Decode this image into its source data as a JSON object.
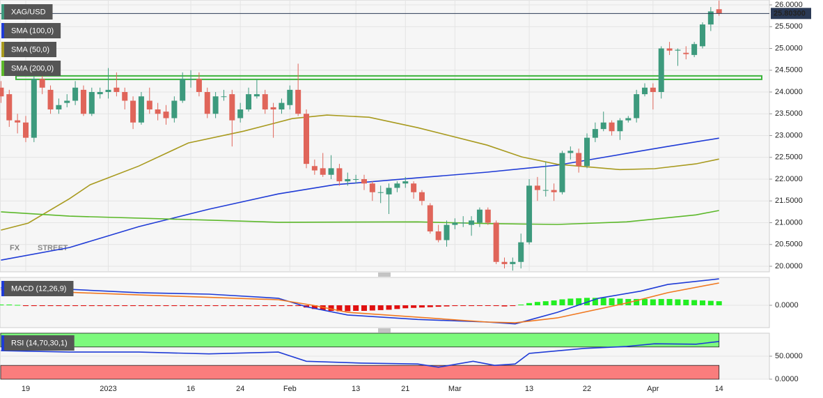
{
  "chart_data": [
    {
      "type": "candlestick",
      "name": "XAG/USD",
      "up_color": "#3d9a7d",
      "down_color": "#e0655a",
      "categories": [
        null,
        null,
        null,
        "19",
        null,
        null,
        null,
        null,
        null,
        null,
        null,
        null,
        null,
        "2023",
        null,
        null,
        null,
        null,
        null,
        null,
        null,
        null,
        null,
        "16",
        null,
        null,
        null,
        null,
        null,
        "24",
        null,
        null,
        null,
        null,
        null,
        "Feb",
        null,
        null,
        null,
        null,
        null,
        null,
        null,
        "13",
        null,
        null,
        null,
        null,
        null,
        "21",
        null,
        null,
        null,
        null,
        null,
        "Mar",
        null,
        null,
        null,
        null,
        null,
        null,
        null,
        null,
        "13",
        null,
        null,
        null,
        null,
        null,
        null,
        "22",
        null,
        null,
        null,
        null,
        null,
        null,
        null,
        "Apr",
        null,
        null,
        null,
        null,
        null,
        null,
        null,
        "14"
      ],
      "open": [
        24.1,
        23.95,
        23.35,
        23.3,
        22.95,
        24.3,
        24.05,
        23.6,
        23.75,
        23.8,
        24.05,
        23.5,
        23.95,
        24.0,
        24.1,
        24.0,
        23.8,
        23.3,
        23.8,
        23.6,
        23.55,
        23.4,
        23.8,
        24.3,
        24.3,
        24.0,
        23.5,
        23.9,
        23.95,
        23.4,
        23.6,
        23.9,
        23.95,
        23.65,
        23.6,
        23.7,
        24.05,
        23.5,
        22.3,
        22.25,
        22.1,
        22.25,
        21.95,
        22.0,
        22.0,
        21.9,
        21.7,
        21.65,
        21.8,
        21.9,
        21.9,
        21.7,
        21.4,
        20.8,
        20.6,
        20.95,
        21.0,
        20.95,
        21.0,
        21.3,
        21.0,
        20.1,
        20.05,
        20.1,
        20.55,
        21.85,
        21.75,
        21.75,
        21.7,
        22.6,
        22.6,
        22.3,
        22.95,
        23.15,
        23.3,
        23.1,
        23.35,
        23.4,
        23.95,
        24.1,
        24.0,
        25.0,
        24.95,
        24.9,
        24.85,
        25.05,
        25.55,
        25.9
      ],
      "high": [
        24.25,
        24.05,
        23.5,
        23.45,
        24.4,
        24.45,
        24.15,
        23.85,
        23.95,
        24.25,
        24.15,
        24.1,
        24.1,
        24.55,
        24.45,
        24.1,
        23.9,
        24.0,
        24.1,
        23.75,
        23.7,
        23.9,
        24.45,
        24.5,
        24.45,
        24.1,
        24.0,
        24.05,
        24.05,
        23.75,
        24.1,
        24.3,
        24.05,
        23.75,
        23.85,
        24.15,
        24.65,
        23.6,
        22.45,
        22.6,
        22.55,
        22.35,
        22.15,
        22.1,
        22.1,
        21.95,
        21.85,
        21.9,
        21.95,
        22.05,
        21.95,
        21.75,
        21.45,
        20.95,
        21.05,
        21.1,
        21.15,
        21.15,
        21.35,
        21.35,
        21.05,
        20.2,
        20.2,
        20.75,
        22.0,
        22.05,
        22.4,
        21.9,
        22.65,
        22.75,
        22.7,
        23.05,
        23.3,
        23.55,
        23.35,
        23.4,
        23.45,
        24.05,
        24.2,
        24.2,
        25.05,
        25.15,
        25.0,
        25.05,
        25.15,
        25.6,
        25.95,
        26.1
      ],
      "low": [
        23.75,
        23.2,
        23.05,
        22.85,
        22.85,
        23.95,
        23.5,
        23.5,
        23.65,
        23.7,
        23.45,
        23.45,
        23.85,
        23.85,
        23.9,
        23.6,
        23.15,
        23.25,
        23.5,
        23.35,
        23.25,
        23.3,
        23.75,
        24.1,
        23.9,
        23.4,
        23.4,
        23.8,
        22.75,
        23.3,
        23.55,
        23.85,
        23.5,
        22.95,
        23.5,
        23.6,
        23.45,
        22.25,
        22.1,
        22.05,
        22.0,
        21.85,
        21.85,
        21.9,
        21.75,
        21.5,
        21.45,
        21.2,
        21.7,
        21.8,
        21.55,
        21.4,
        20.75,
        20.55,
        20.45,
        20.85,
        20.9,
        20.7,
        20.9,
        20.95,
        20.05,
        19.95,
        19.9,
        19.95,
        20.5,
        21.5,
        21.6,
        21.5,
        21.65,
        22.45,
        22.15,
        22.25,
        22.85,
        23.1,
        23.0,
        22.9,
        23.3,
        23.3,
        23.9,
        23.6,
        23.85,
        24.85,
        24.6,
        24.75,
        24.8,
        25.0,
        25.4,
        25.75
      ],
      "close": [
        23.9,
        23.35,
        23.3,
        22.95,
        24.3,
        24.1,
        23.6,
        23.7,
        23.8,
        24.1,
        23.5,
        24.0,
        24.0,
        24.05,
        24.0,
        23.8,
        23.3,
        23.9,
        23.6,
        23.5,
        23.4,
        23.8,
        24.3,
        24.3,
        24.0,
        23.5,
        23.9,
        23.9,
        23.35,
        23.6,
        23.95,
        23.95,
        23.6,
        23.6,
        23.75,
        24.05,
        23.5,
        22.35,
        22.2,
        22.1,
        22.25,
        21.95,
        22.0,
        22.0,
        21.9,
        21.7,
        21.7,
        21.8,
        21.9,
        21.95,
        21.7,
        21.5,
        20.8,
        20.6,
        20.95,
        21.0,
        21.0,
        21.05,
        21.3,
        21.0,
        20.1,
        20.05,
        20.1,
        20.55,
        21.85,
        21.75,
        21.75,
        21.7,
        22.6,
        22.65,
        22.3,
        22.95,
        23.15,
        23.3,
        23.1,
        23.35,
        23.4,
        23.95,
        24.1,
        24.0,
        25.0,
        24.95,
        24.97,
        24.87,
        25.1,
        25.55,
        25.85,
        25.8
      ],
      "series": [
        {
          "name": "SMA (100,0)",
          "color": "#1f3bd6",
          "x": [
            0,
            8.3,
            16.7,
            25.2,
            33.6,
            40.4,
            50.5,
            58.9,
            67.4,
            75.8,
            80.8,
            87
          ],
          "values": [
            20.14,
            20.43,
            20.91,
            21.31,
            21.66,
            21.87,
            22.03,
            22.16,
            22.32,
            22.59,
            22.75,
            22.94
          ]
        },
        {
          "name": "SMA (50,0)",
          "color": "#a89a1e",
          "x": [
            0,
            3.3,
            8.3,
            10.8,
            16.7,
            22.7,
            29.4,
            35.3,
            39.5,
            44.6,
            50.5,
            58.9,
            63.1,
            67.4,
            75,
            79.2,
            84.2,
            87
          ],
          "values": [
            20.83,
            20.99,
            21.55,
            21.87,
            22.3,
            22.83,
            23.1,
            23.39,
            23.47,
            23.42,
            23.18,
            22.78,
            22.51,
            22.34,
            22.22,
            22.24,
            22.35,
            22.46
          ]
        },
        {
          "name": "SMA (200,0)",
          "color": "#5cb82a",
          "x": [
            0,
            8.3,
            25.2,
            33.6,
            50.5,
            58.9,
            67.4,
            75.8,
            84.2,
            87
          ],
          "values": [
            21.25,
            21.15,
            21.06,
            21.01,
            21.02,
            20.98,
            20.96,
            21.02,
            21.18,
            21.28
          ]
        }
      ],
      "xlim": [
        -0.12,
        93.1
      ],
      "ylim": [
        19.872,
        26.112
      ],
      "yticks": [
        {
          "value": 26,
          "label": "26.0000"
        },
        {
          "value": 25.5,
          "label": "25.5000"
        },
        {
          "value": 25,
          "label": "25.0000"
        },
        {
          "value": 24.5,
          "label": "24.5000"
        },
        {
          "value": 24,
          "label": "24.0000"
        },
        {
          "value": 23.5,
          "label": "23.5000"
        },
        {
          "value": 23,
          "label": "23.0000"
        },
        {
          "value": 22.5,
          "label": "22.5000"
        },
        {
          "value": 22,
          "label": "22.0000"
        },
        {
          "value": 21.5,
          "label": "21.5000"
        },
        {
          "value": 21,
          "label": "21.0000"
        },
        {
          "value": 20.5,
          "label": "20.5000"
        },
        {
          "value": 20,
          "label": "20.0000"
        }
      ],
      "last_price": {
        "value": 25.803,
        "label": "25.80300"
      },
      "zone": [
        24.29,
        24.37
      ],
      "watermark": [
        "FX",
        "STREET"
      ],
      "grid": true
    },
    {
      "type": "macd",
      "name": "MACD (12,26,9)",
      "xlim": [
        -0.12,
        93.1
      ],
      "ylim": [
        -0.6,
        0.75
      ],
      "yticks": [
        {
          "value": 0,
          "label": "0.0000"
        }
      ],
      "series": [
        {
          "color": "#1f3bd6",
          "x": [
            0,
            8.3,
            16.7,
            25.2,
            33.6,
            37,
            42,
            50.5,
            58.9,
            62.3,
            67.4,
            72.4,
            77.5,
            80.8,
            87
          ],
          "values": [
            0.47,
            0.43,
            0.34,
            0.3,
            0.19,
            -0.04,
            -0.26,
            -0.38,
            -0.45,
            -0.5,
            -0.19,
            0.19,
            0.38,
            0.56,
            0.71
          ]
        },
        {
          "color": "#f07820",
          "x": [
            0,
            16.7,
            33.6,
            37.8,
            42,
            50.5,
            58.9,
            62.3,
            67.4,
            75.8,
            80.8,
            87
          ],
          "values": [
            0.42,
            0.28,
            0.15,
            0,
            -0.19,
            -0.32,
            -0.45,
            -0.47,
            -0.34,
            0.06,
            0.34,
            0.6
          ]
        }
      ],
      "histogram": {
        "pos_color": "#22ee22",
        "neg_color": "#e01010",
        "values": [
          0.02,
          0.02,
          0.01,
          -0.02,
          -0.02,
          -0.02,
          -0.02,
          -0.02,
          -0.02,
          -0.02,
          -0.02,
          -0.02,
          -0.02,
          -0.02,
          -0.02,
          -0.02,
          -0.02,
          -0.02,
          -0.02,
          -0.02,
          -0.02,
          -0.02,
          -0.02,
          -0.02,
          -0.02,
          -0.02,
          -0.02,
          -0.02,
          -0.02,
          -0.02,
          -0.02,
          -0.02,
          -0.02,
          -0.02,
          -0.02,
          -0.02,
          -0.02,
          -0.06,
          -0.1,
          -0.13,
          -0.15,
          -0.16,
          -0.16,
          -0.15,
          -0.15,
          -0.14,
          -0.13,
          -0.12,
          -0.1,
          -0.08,
          -0.07,
          -0.06,
          -0.05,
          -0.04,
          -0.03,
          -0.02,
          -0.02,
          -0.02,
          -0.01,
          -0.01,
          -0.02,
          -0.03,
          -0.02,
          0.02,
          0.06,
          0.09,
          0.11,
          0.13,
          0.16,
          0.18,
          0.19,
          0.2,
          0.2,
          0.2,
          0.19,
          0.18,
          0.17,
          0.17,
          0.17,
          0.16,
          0.17,
          0.17,
          0.16,
          0.15,
          0.14,
          0.13,
          0.12,
          0.11
        ]
      },
      "grid": true
    },
    {
      "type": "rsi",
      "name": "RSI (14,70,30,1)",
      "xlim": [
        -0.12,
        93.1
      ],
      "ylim": [
        0,
        100
      ],
      "yticks": [
        {
          "value": 50,
          "label": "50.0000"
        },
        {
          "value": 0,
          "label": "0.0000"
        }
      ],
      "overbought": 70,
      "oversold": 30,
      "overbought_color": "#7dfa7d",
      "oversold_color": "#fa7d7d",
      "series": [
        {
          "color": "#1f3bd6",
          "x": [
            0,
            8.3,
            16.7,
            25.2,
            33.6,
            37,
            43.7,
            50.5,
            53,
            57.2,
            59.8,
            62.3,
            64,
            70.7,
            75.8,
            79.2,
            84.2,
            87
          ],
          "values": [
            62,
            59,
            59,
            55,
            59,
            39,
            35,
            33,
            26,
            39,
            30,
            33,
            56,
            67,
            71,
            77,
            76,
            82
          ]
        }
      ],
      "grid": true
    }
  ]
}
